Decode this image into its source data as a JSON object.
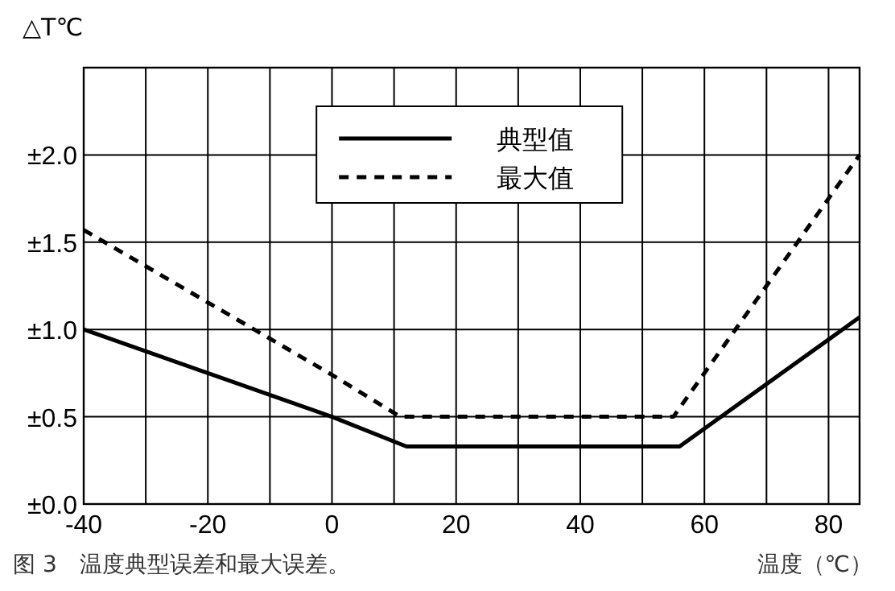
{
  "chart_data": {
    "type": "line",
    "ylabel": "△T℃",
    "xlabel": "温度（℃）",
    "annotations": [
      "图 3　温度典型误差和最大误差。"
    ],
    "xlim": [
      -40,
      85
    ],
    "ylim": [
      0,
      2.5
    ],
    "xticks": [
      -40,
      {
        "value": -30,
        "label": null
      },
      -20,
      {
        "value": -10,
        "label": null
      },
      0,
      {
        "value": 10,
        "label": null
      },
      20,
      {
        "value": 30,
        "label": null
      },
      40,
      {
        "value": 50,
        "label": null
      },
      60,
      {
        "value": 70,
        "label": null
      },
      80
    ],
    "yticks": [
      {
        "value": 0,
        "label": "±0.0"
      },
      {
        "value": 0.5,
        "label": "±0.5"
      },
      {
        "value": 1,
        "label": "±1.0"
      },
      {
        "value": 1.5,
        "label": "±1.5"
      },
      {
        "value": 2,
        "label": "±2.0"
      }
    ],
    "grid": true,
    "legend": "top",
    "marker": "none",
    "series": [
      {
        "name": "典型值",
        "color": "#000000",
        "line_style": "solid",
        "x": [
          -40,
          0,
          12,
          56,
          85
        ],
        "values": [
          1.0,
          0.5,
          0.33,
          0.33,
          1.07
        ]
      },
      {
        "name": "最大值",
        "color": "#000000",
        "line_style": "dashed",
        "x": [
          -40,
          0,
          11,
          55,
          85
        ],
        "values": [
          1.57,
          0.74,
          0.5,
          0.5,
          2.0
        ]
      }
    ]
  }
}
